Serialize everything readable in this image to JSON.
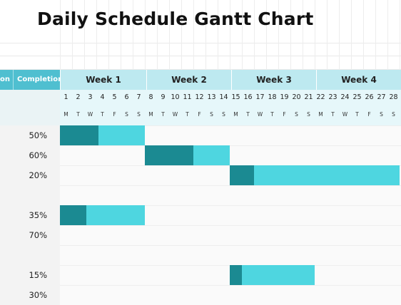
{
  "title": "Daily Schedule Gantt Chart",
  "columns": {
    "partial": "on",
    "completion": "Completion"
  },
  "weeks": [
    "Week 1",
    "Week 2",
    "Week 3",
    "Week 4"
  ],
  "days": [
    "1",
    "2",
    "3",
    "4",
    "5",
    "6",
    "7",
    "8",
    "9",
    "10",
    "11",
    "12",
    "13",
    "14",
    "15",
    "16",
    "17",
    "18",
    "19",
    "20",
    "21",
    "22",
    "23",
    "24",
    "25",
    "26",
    "27",
    "28"
  ],
  "weekdays": [
    "M",
    "T",
    "W",
    "T",
    "F",
    "S",
    "S",
    "M",
    "T",
    "W",
    "T",
    "F",
    "S",
    "S",
    "M",
    "T",
    "W",
    "T",
    "F",
    "S",
    "S",
    "M",
    "T",
    "W",
    "T",
    "F",
    "S",
    "S"
  ],
  "tasks": [
    {
      "completion": "50%",
      "start_day": 1,
      "duration_days": 7,
      "done_days": 3.2
    },
    {
      "completion": "60%",
      "start_day": 8,
      "duration_days": 7,
      "done_days": 4
    },
    {
      "completion": "20%",
      "start_day": 15,
      "duration_days": 14,
      "done_days": 2
    },
    {
      "completion": "",
      "start_day": null,
      "duration_days": 0,
      "done_days": 0
    },
    {
      "completion": "35%",
      "start_day": 1,
      "duration_days": 7,
      "done_days": 2.2
    },
    {
      "completion": "70%",
      "start_day": null,
      "duration_days": 0,
      "done_days": 0
    },
    {
      "completion": "",
      "start_day": null,
      "duration_days": 0,
      "done_days": 0
    },
    {
      "completion": "15%",
      "start_day": 15,
      "duration_days": 7,
      "done_days": 1
    },
    {
      "completion": "30%",
      "start_day": null,
      "duration_days": 0,
      "done_days": 0
    }
  ],
  "colors": {
    "done": "#1b8a92",
    "remaining": "#4ed6e0",
    "header": "#4fbfd0",
    "week_band": "#bde9f0"
  }
}
